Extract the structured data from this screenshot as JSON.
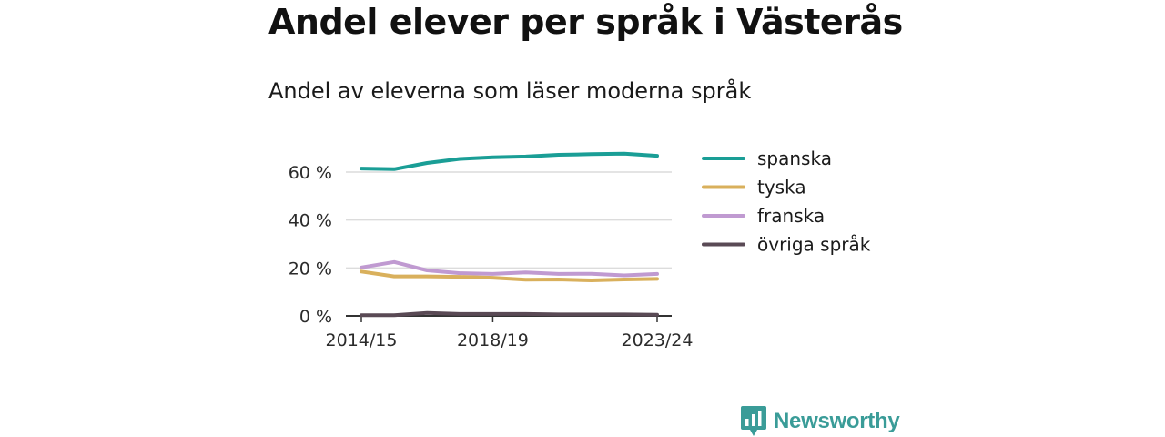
{
  "header": {
    "title": "Andel elever per språk i Västerås",
    "subtitle": "Andel av eleverna som läser moderna språk"
  },
  "chart_data": {
    "type": "line",
    "title": "Andel elever per språk i Västerås",
    "subtitle": "Andel av eleverna som läser moderna språk",
    "xlabel": "",
    "ylabel": "",
    "x": [
      "2014/15",
      "2015/16",
      "2016/17",
      "2017/18",
      "2018/19",
      "2019/20",
      "2020/21",
      "2021/22",
      "2022/23",
      "2023/24"
    ],
    "x_tick_labels": [
      "2014/15",
      "2018/19",
      "2023/24"
    ],
    "y_ticks": [
      0,
      20,
      40,
      60
    ],
    "y_tick_labels": [
      "0 %",
      "20 %",
      "40 %",
      "60 %"
    ],
    "ylim": [
      0,
      70
    ],
    "grid": "horizontal",
    "legend_position": "right",
    "series": [
      {
        "name": "spanska",
        "color": "#1a9e96",
        "values": [
          61.5,
          61.2,
          63.8,
          65.5,
          66.2,
          66.5,
          67.2,
          67.5,
          67.7,
          66.8
        ]
      },
      {
        "name": "tyska",
        "color": "#d9b05c",
        "values": [
          18.5,
          16.5,
          16.5,
          16.3,
          15.9,
          15.1,
          15.2,
          14.8,
          15.2,
          15.4
        ]
      },
      {
        "name": "franska",
        "color": "#c09ad1",
        "values": [
          20.2,
          22.5,
          19.0,
          17.8,
          17.5,
          18.1,
          17.5,
          17.6,
          16.9,
          17.5
        ]
      },
      {
        "name": "övriga språk",
        "color": "#5a4a55",
        "values": [
          0.3,
          0.3,
          1.2,
          0.8,
          0.8,
          0.8,
          0.6,
          0.6,
          0.6,
          0.5
        ]
      }
    ]
  },
  "branding": {
    "name": "Newsworthy",
    "logo_icon": "newsworthy-logo-icon",
    "color": "#3a9c98"
  }
}
